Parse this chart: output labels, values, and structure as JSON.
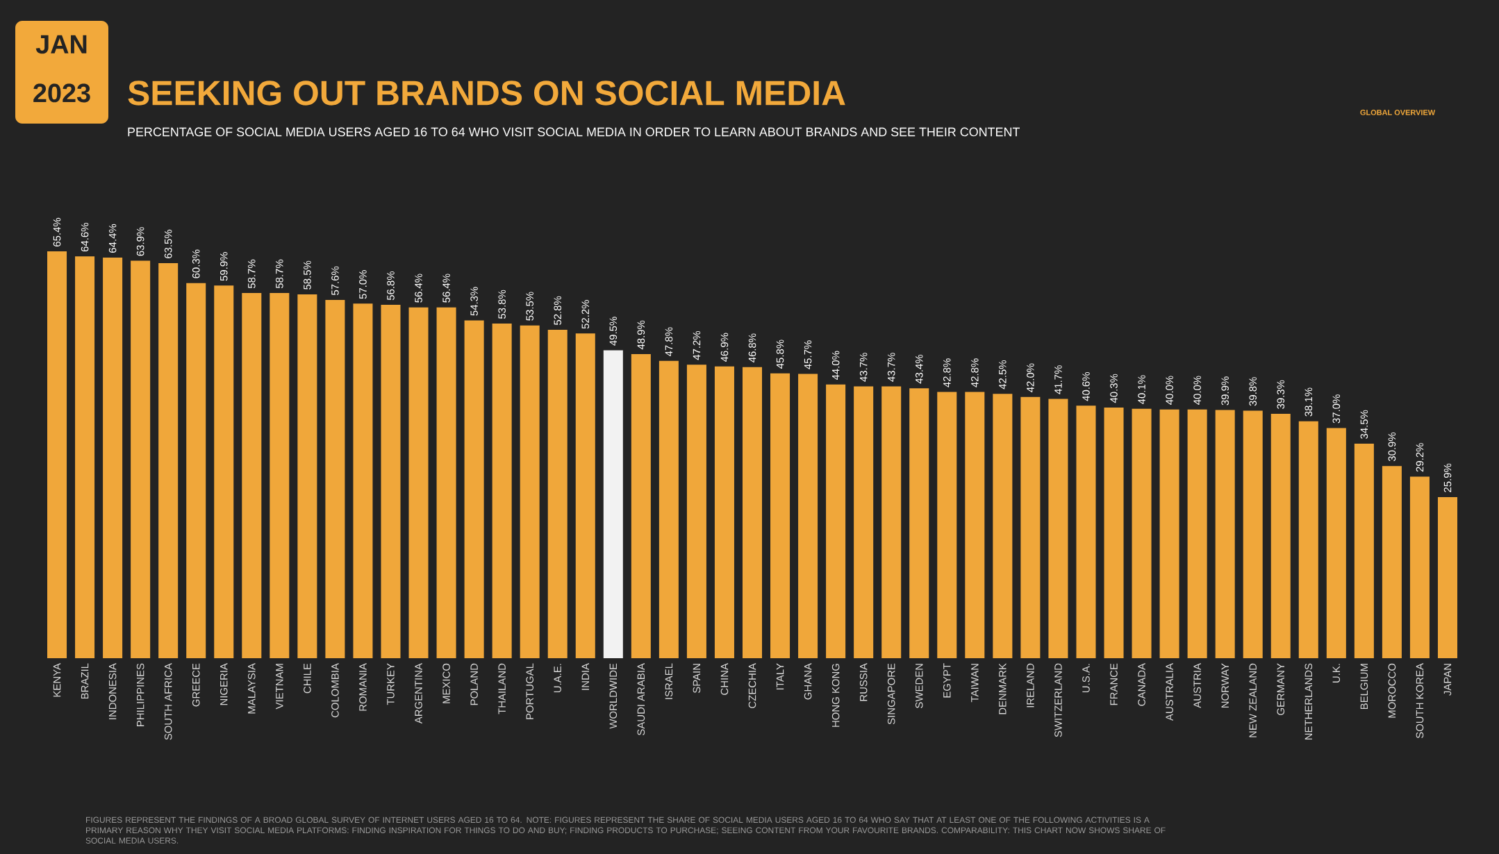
{
  "chart_data": {
    "type": "bar",
    "title": "SEEKING OUT BRANDS ON SOCIAL MEDIA",
    "subtitle": "PERCENTAGE OF SOCIAL MEDIA USERS AGED 16 TO 64 WHO VISIT SOCIAL MEDIA IN ORDER TO LEARN ABOUT BRANDS AND SEE THEIR CONTENT",
    "categories": [
      "KENYA",
      "BRAZIL",
      "INDONESIA",
      "PHILIPPINES",
      "SOUTH AFRICA",
      "GREECE",
      "NIGERIA",
      "MALAYSIA",
      "VIETNAM",
      "CHILE",
      "COLOMBIA",
      "ROMANIA",
      "TURKEY",
      "ARGENTINA",
      "MEXICO",
      "POLAND",
      "THAILAND",
      "PORTUGAL",
      "U.A.E.",
      "INDIA",
      "WORLDWIDE",
      "SAUDI ARABIA",
      "ISRAEL",
      "SPAIN",
      "CHINA",
      "CZECHIA",
      "ITALY",
      "GHANA",
      "HONG KONG",
      "RUSSIA",
      "SINGAPORE",
      "SWEDEN",
      "EGYPT",
      "TAIWAN",
      "DENMARK",
      "IRELAND",
      "SWITZERLAND",
      "U.S.A.",
      "FRANCE",
      "CANADA",
      "AUSTRALIA",
      "AUSTRIA",
      "NORWAY",
      "NEW ZEALAND",
      "GERMANY",
      "NETHERLANDS",
      "U.K.",
      "BELGIUM",
      "MOROCCO",
      "SOUTH KOREA",
      "JAPAN"
    ],
    "values": [
      65.4,
      64.6,
      64.4,
      63.9,
      63.5,
      60.3,
      59.9,
      58.7,
      58.7,
      58.5,
      57.6,
      57.0,
      56.8,
      56.4,
      56.4,
      54.3,
      53.8,
      53.5,
      52.8,
      52.2,
      49.5,
      48.9,
      47.8,
      47.2,
      46.9,
      46.8,
      45.8,
      45.7,
      44.0,
      43.7,
      43.7,
      43.4,
      42.8,
      42.8,
      42.5,
      42.0,
      41.7,
      40.6,
      40.3,
      40.1,
      40.0,
      40.0,
      39.9,
      39.8,
      39.3,
      38.1,
      37.0,
      34.5,
      30.9,
      29.2,
      25.9
    ],
    "value_labels": [
      "65.4%",
      "64.6%",
      "64.4%",
      "63.9%",
      "63.5%",
      "60.3%",
      "59.9%",
      "58.7%",
      "58.7%",
      "58.5%",
      "57.6%",
      "57.0%",
      "56.8%",
      "56.4%",
      "56.4%",
      "54.3%",
      "53.8%",
      "53.5%",
      "52.8%",
      "52.2%",
      "49.5%",
      "48.9%",
      "47.8%",
      "47.2%",
      "46.9%",
      "46.8%",
      "45.8%",
      "45.7%",
      "44.0%",
      "43.7%",
      "43.7%",
      "43.4%",
      "42.8%",
      "42.8%",
      "42.5%",
      "42.0%",
      "41.7%",
      "40.6%",
      "40.3%",
      "40.1%",
      "40.0%",
      "40.0%",
      "39.9%",
      "39.8%",
      "39.3%",
      "38.1%",
      "37.0%",
      "34.5%",
      "30.9%",
      "29.2%",
      "25.9%"
    ],
    "colors": [
      "#f0a73a",
      "#f0a73a",
      "#f0a73a",
      "#f0a73a",
      "#f0a73a",
      "#f0a73a",
      "#f0a73a",
      "#f0a73a",
      "#f0a73a",
      "#f0a73a",
      "#f0a73a",
      "#f0a73a",
      "#f0a73a",
      "#f0a73a",
      "#f0a73a",
      "#f0a73a",
      "#f0a73a",
      "#f0a73a",
      "#f0a73a",
      "#f0a73a",
      "#f2f2f2",
      "#f0a73a",
      "#f0a73a",
      "#f0a73a",
      "#f0a73a",
      "#f0a73a",
      "#f0a73a",
      "#f0a73a",
      "#f0a73a",
      "#f0a73a",
      "#f0a73a",
      "#f0a73a",
      "#f0a73a",
      "#f0a73a",
      "#f0a73a",
      "#f0a73a",
      "#f0a73a",
      "#f0a73a",
      "#f0a73a",
      "#f0a73a",
      "#f0a73a",
      "#f0a73a",
      "#f0a73a",
      "#f0a73a",
      "#f0a73a",
      "#f0a73a",
      "#f0a73a",
      "#f0a73a",
      "#f0a73a",
      "#f0a73a",
      "#f0a73a"
    ],
    "annotations": [
      "JAN",
      "2023",
      "GLOBAL OVERVIEW",
      "FIGURES REPRESENT THE FINDINGS OF A BROAD GLOBAL SURVEY OF INTERNET USERS AGED 16 TO 64. NOTE: FIGURES REPRESENT THE SHARE OF SOCIAL MEDIA USERS AGED 16 TO 64 WHO SAY THAT AT LEAST ONE OF THE FOLLOWING ACTIVITIES IS A PRIMARY REASON WHY THEY VISIT SOCIAL MEDIA PLATFORMS: FINDING INSPIRATION FOR THINGS TO DO AND BUY; FINDING PRODUCTS TO PURCHASE; SEEING CONTENT FROM YOUR FAVOURITE BRANDS. COMPARABILITY: THIS CHART NOW SHOWS SHARE OF SOCIAL MEDIA USERS."
    ],
    "orientation": "vertical"
  }
}
